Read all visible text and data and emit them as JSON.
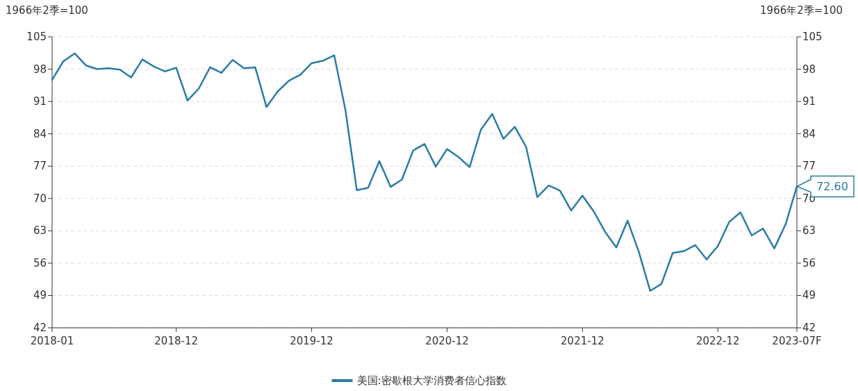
{
  "chart_data": {
    "type": "line",
    "ylabel": "1966年2季=100",
    "y2label": "1966年2季=100",
    "categories": [
      "2018-01",
      null,
      null,
      null,
      null,
      null,
      null,
      null,
      null,
      null,
      null,
      "2018-12",
      null,
      null,
      null,
      null,
      null,
      null,
      null,
      null,
      null,
      null,
      null,
      "2019-12",
      null,
      null,
      null,
      null,
      null,
      null,
      null,
      null,
      null,
      null,
      null,
      "2020-12",
      null,
      null,
      null,
      null,
      null,
      null,
      null,
      null,
      null,
      null,
      null,
      "2021-12",
      null,
      null,
      null,
      null,
      null,
      null,
      null,
      null,
      null,
      null,
      null,
      "2022-12",
      null,
      null,
      null,
      null,
      null,
      null,
      "2023-07F"
    ],
    "series": [
      {
        "name": "美国:密歇根大学消费者信心指数",
        "color": "#2a7ca4",
        "values": [
          95.7,
          99.7,
          101.4,
          98.8,
          98.0,
          98.2,
          97.9,
          96.2,
          100.1,
          98.6,
          97.5,
          98.3,
          91.2,
          93.8,
          98.4,
          97.2,
          100.0,
          98.2,
          98.4,
          89.8,
          93.2,
          95.5,
          96.8,
          99.3,
          99.8,
          101.0,
          89.1,
          71.8,
          72.3,
          78.1,
          72.5,
          74.1,
          80.4,
          81.8,
          76.9,
          80.7,
          79.0,
          76.8,
          84.9,
          88.3,
          82.9,
          85.5,
          81.2,
          70.3,
          72.8,
          71.7,
          67.4,
          70.6,
          67.2,
          62.8,
          59.4,
          65.2,
          58.4,
          50.0,
          51.5,
          58.2,
          58.6,
          59.9,
          56.8,
          59.7,
          64.9,
          67.0,
          62.0,
          63.5,
          59.2,
          64.4,
          72.6
        ]
      }
    ],
    "ylim": [
      42,
      105
    ],
    "yticks": [
      42,
      49,
      56,
      63,
      70,
      77,
      84,
      91,
      98,
      105
    ],
    "y2lim": [
      42,
      105
    ],
    "y2ticks": [
      42,
      49,
      56,
      63,
      70,
      77,
      84,
      91,
      98,
      105
    ],
    "grid": "y",
    "legend": "bottom",
    "annotations": [
      {
        "text": "72.60",
        "x": "2023-07F",
        "y": 72.6
      }
    ]
  }
}
